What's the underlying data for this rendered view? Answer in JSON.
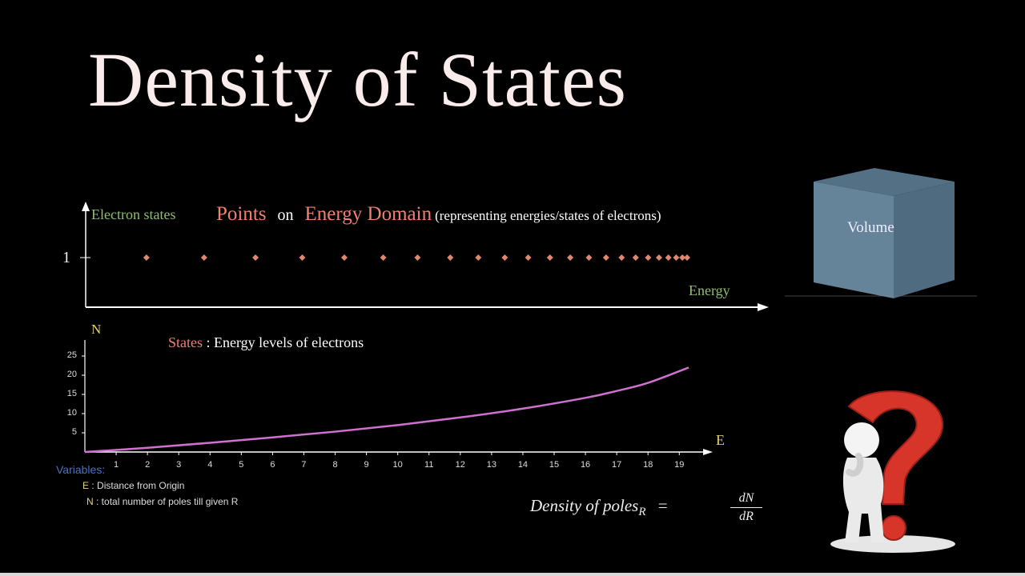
{
  "title": "Density of States",
  "top_plot": {
    "ylabel": "Electron states",
    "ytick": "1",
    "xlabel": "Energy",
    "heading_points": "Points",
    "heading_on": "on",
    "heading_domain": "Energy Domain",
    "heading_note": "(representing energies/states of electrons)",
    "stem_energies": [
      1.95,
      3.8,
      5.45,
      6.95,
      8.3,
      9.55,
      10.65,
      11.7,
      12.6,
      13.45,
      14.2,
      14.9,
      15.55,
      16.15,
      16.7,
      17.2,
      17.65,
      18.05,
      18.4,
      18.7,
      18.95,
      19.15,
      19.3
    ],
    "stem_value": 1
  },
  "cube": {
    "label": "Volume"
  },
  "bottom_plot": {
    "ylabel": "N",
    "xlabel": "E",
    "states_word": "States",
    "states_desc": ": Energy levels of electrons",
    "yticks": [
      "25",
      "20",
      "15",
      "10",
      "5"
    ],
    "xticks": [
      "1",
      "2",
      "3",
      "4",
      "5",
      "6",
      "7",
      "8",
      "9",
      "10",
      "11",
      "12",
      "13",
      "14",
      "15",
      "16",
      "17",
      "18",
      "19"
    ]
  },
  "chart_data": {
    "type": "line",
    "x": [
      0,
      2,
      4,
      6,
      8,
      10,
      12,
      14,
      16,
      17,
      18,
      19.3
    ],
    "y": [
      0,
      1.1,
      2.4,
      3.8,
      5.3,
      7.0,
      9.0,
      11.3,
      14.1,
      15.9,
      18.0,
      22.0
    ],
    "xlim": [
      0,
      19.3
    ],
    "ylim": [
      0,
      25
    ],
    "xlabel": "E",
    "ylabel": "N"
  },
  "variables": {
    "heading": "Variables:",
    "e_symbol": "E",
    "e_desc": ": Distance from Origin",
    "n_symbol": "N",
    "n_desc": ": total number of poles till given R"
  },
  "formula": {
    "lhs": "Density of poles",
    "subscript": "R",
    "equals": "=",
    "numerator": "dN",
    "denominator": "dR"
  },
  "colors": {
    "stem_top": "#e0876e",
    "stem_bottom": "#8fbf6f",
    "curve": "#d070d0",
    "axis": "#ffffff",
    "cube": "#6f8fa6"
  }
}
